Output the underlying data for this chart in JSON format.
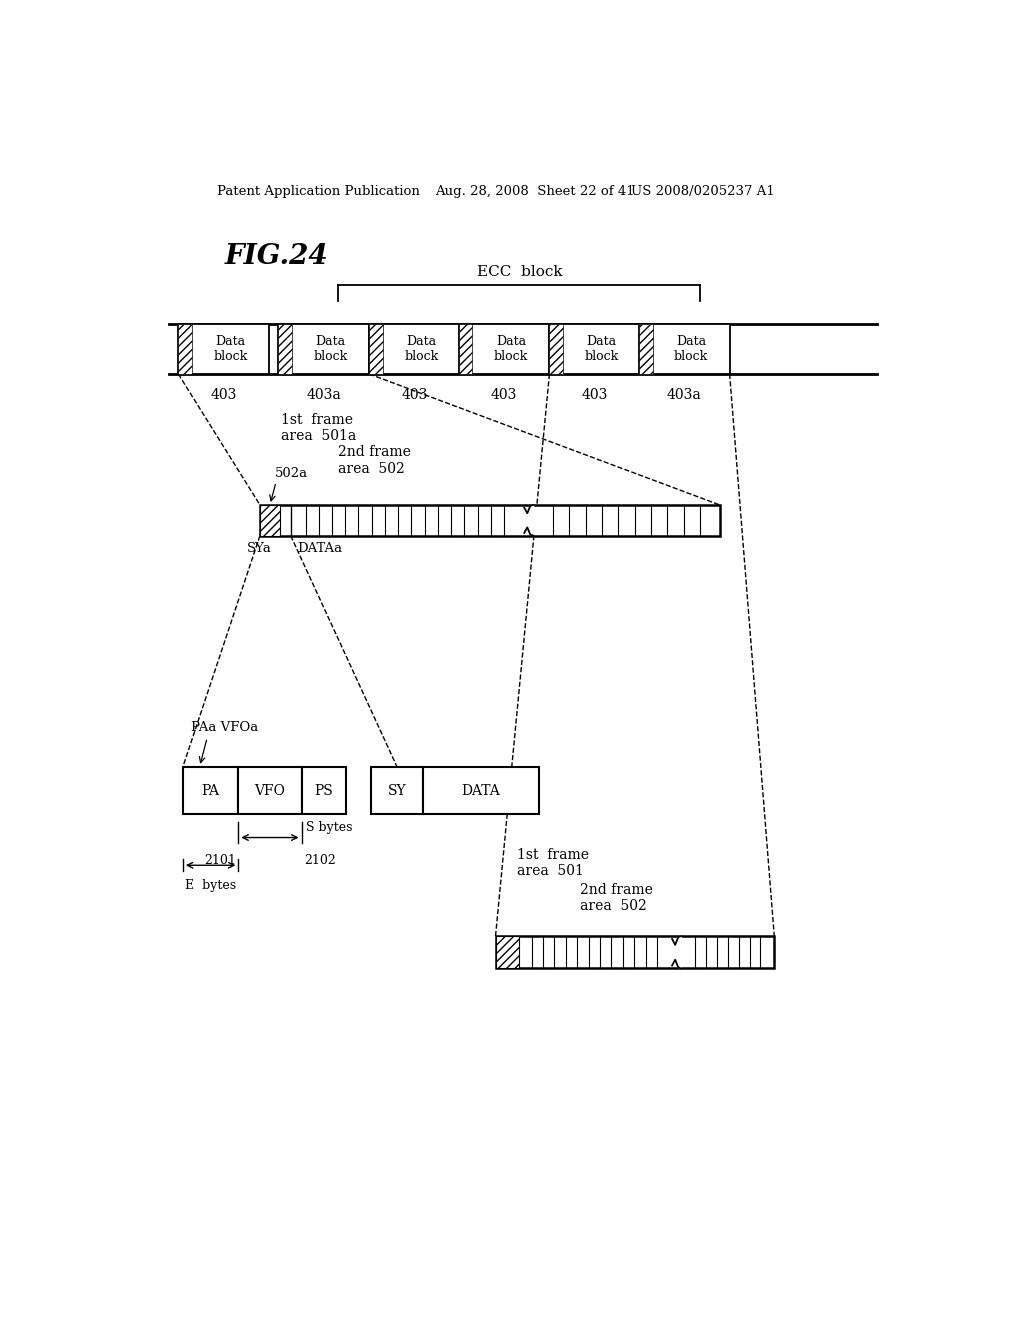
{
  "bg_color": "#ffffff",
  "header_left": "Patent Application Publication",
  "header_mid": "Aug. 28, 2008  Sheet 22 of 41",
  "header_right": "US 2008/0205237 A1",
  "fig_title": "FIG.24",
  "ecc_label": "ECC  block",
  "block_labels": [
    "Data\nblock",
    "Data\nblock",
    "Data\nblock",
    "Data\nblock",
    "Data\nblock",
    "Data\nblock"
  ],
  "block_refs": [
    "403",
    "403a",
    "403",
    "403",
    "403",
    "403a"
  ],
  "bottom_seg_labels": [
    "PA",
    "VFO",
    "PS",
    "SY",
    "DATA"
  ],
  "label_2101": "2101",
  "label_2102": "2102",
  "label_s_bytes": "S bytes",
  "label_e_bytes": "E  bytes",
  "label_paa_vfoa": "PAa VFOa",
  "label_sya": "SYa",
  "label_dataa": "DATAa",
  "label_502a": "502a",
  "label_1st_frame_501a": "1st  frame\narea  501a",
  "label_2nd_frame_502": "2nd frame\narea  502",
  "label_1st_frame_501": "1st  frame\narea  501",
  "label_2nd_frame_502b": "2nd frame\narea  502"
}
